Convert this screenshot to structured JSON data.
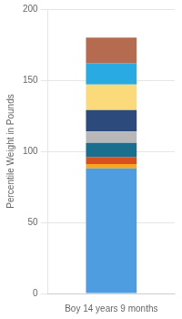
{
  "chart_data": {
    "type": "bar",
    "stacked": true,
    "categories": [
      "Boy 14 years 9 months"
    ],
    "series": [
      {
        "color": "#4D9DE0",
        "values": [
          88
        ]
      },
      {
        "color": "#F5A623",
        "values": [
          3
        ]
      },
      {
        "color": "#D94F1E",
        "values": [
          5
        ]
      },
      {
        "color": "#1A6E8E",
        "values": [
          10
        ]
      },
      {
        "color": "#B8B8B8",
        "values": [
          8
        ]
      },
      {
        "color": "#2C4A7C",
        "values": [
          15
        ]
      },
      {
        "color": "#FADA7A",
        "values": [
          18
        ]
      },
      {
        "color": "#29AAE2",
        "values": [
          15
        ]
      },
      {
        "color": "#B56B50",
        "values": [
          18
        ]
      }
    ],
    "ylabel": "Percentile Weight in Pounds",
    "ylim": [
      0,
      200
    ],
    "yticks": [
      0,
      50,
      100,
      150,
      200
    ],
    "grid": true
  }
}
